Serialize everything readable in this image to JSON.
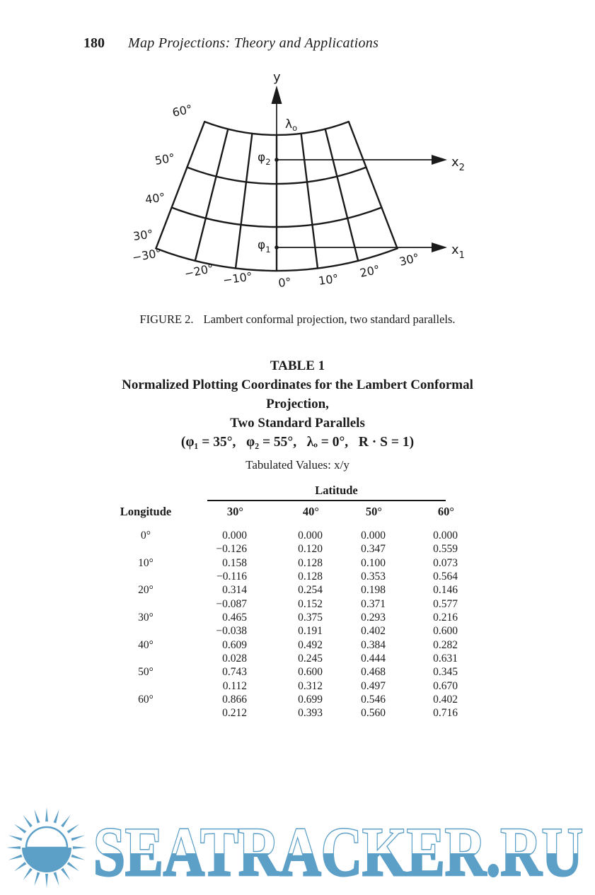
{
  "header": {
    "page_number": "180",
    "running_title": "Map Projections: Theory and Applications"
  },
  "figure": {
    "caption_label": "FIGURE 2.",
    "caption": "Lambert conformal projection, two standard parallels.",
    "y_axis_label": "y",
    "lambda_label": "λ",
    "lambda_sub": "o",
    "phi2_label": "φ",
    "phi2_sub": "2",
    "phi1_label": "φ",
    "phi1_sub": "1",
    "x2_label": "x",
    "x2_sub": "2",
    "x1_label": "x",
    "x1_sub": "1",
    "lat_labels": [
      "60°",
      "50°",
      "40°",
      "30°"
    ],
    "lon_labels": [
      "−30°",
      "−20°",
      "−10°",
      "0°",
      "10°",
      "20°",
      "30°"
    ]
  },
  "table": {
    "title_line1": "TABLE 1",
    "title_line2": "Normalized Plotting Coordinates for the Lambert Conformal",
    "title_line3": "Projection,",
    "title_line4": "Two Standard Parallels",
    "title_line5": "(φ₁ = 35°,   φ₂ = 55°,   λₒ = 0°,   R · S = 1)",
    "subtitle": "Tabulated Values: x/y",
    "group_header": "Latitude",
    "col_headers": [
      "Longitude",
      "30°",
      "40°",
      "50°",
      "60°"
    ],
    "rows": [
      {
        "lon": "0°",
        "values": [
          "0.000",
          "0.000",
          "0.000",
          "0.000"
        ]
      },
      {
        "lon": "",
        "values": [
          "−0.126",
          "0.120",
          "0.347",
          "0.559"
        ]
      },
      {
        "lon": "10°",
        "values": [
          "0.158",
          "0.128",
          "0.100",
          "0.073"
        ]
      },
      {
        "lon": "",
        "values": [
          "−0.116",
          "0.128",
          "0.353",
          "0.564"
        ]
      },
      {
        "lon": "20°",
        "values": [
          "0.314",
          "0.254",
          "0.198",
          "0.146"
        ]
      },
      {
        "lon": "",
        "values": [
          "−0.087",
          "0.152",
          "0.371",
          "0.577"
        ]
      },
      {
        "lon": "30°",
        "values": [
          "0.465",
          "0.375",
          "0.293",
          "0.216"
        ]
      },
      {
        "lon": "",
        "values": [
          "−0.038",
          "0.191",
          "0.402",
          "0.600"
        ]
      },
      {
        "lon": "40°",
        "values": [
          "0.609",
          "0.492",
          "0.384",
          "0.282"
        ]
      },
      {
        "lon": "",
        "values": [
          "0.028",
          "0.245",
          "0.444",
          "0.631"
        ]
      },
      {
        "lon": "50°",
        "values": [
          "0.743",
          "0.600",
          "0.468",
          "0.345"
        ]
      },
      {
        "lon": "",
        "values": [
          "0.112",
          "0.312",
          "0.497",
          "0.670"
        ]
      },
      {
        "lon": "60°",
        "values": [
          "0.866",
          "0.699",
          "0.546",
          "0.402"
        ]
      },
      {
        "lon": "",
        "values": [
          "0.212",
          "0.393",
          "0.560",
          "0.716"
        ]
      }
    ]
  },
  "watermark": {
    "text": "SEATRACKER.RU",
    "color": "#5C9FC7"
  }
}
